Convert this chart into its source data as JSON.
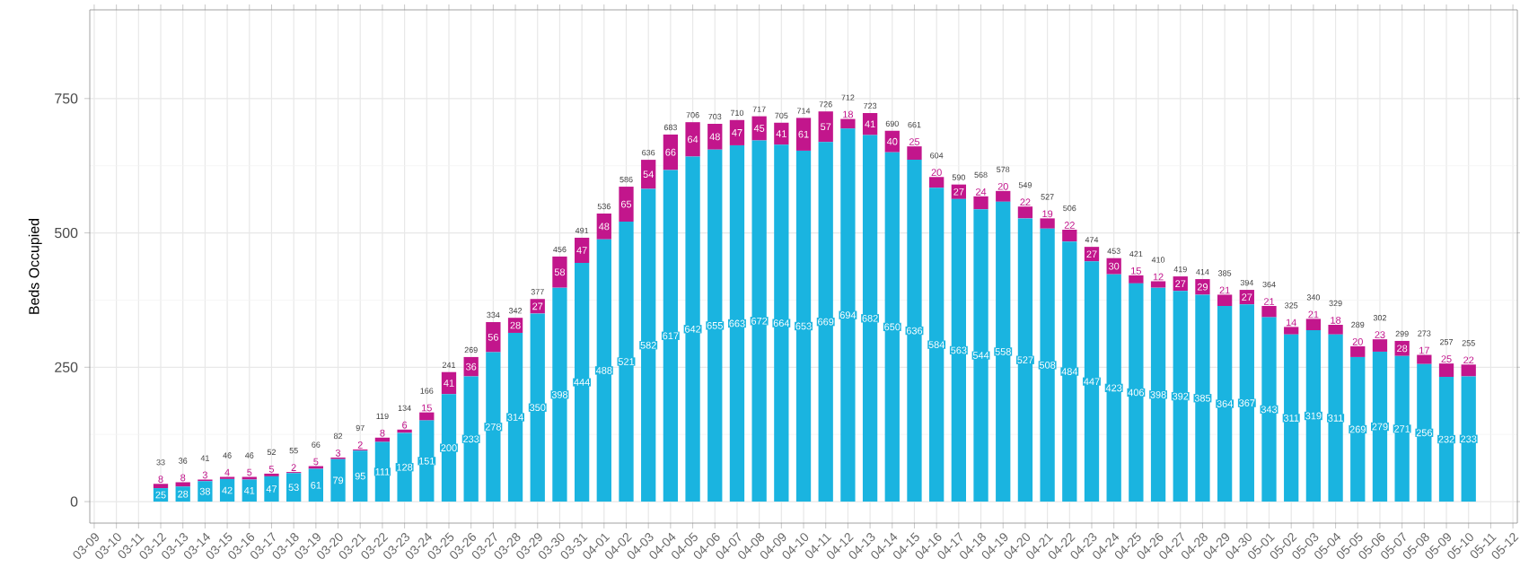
{
  "chart_data": {
    "type": "bar",
    "stacked": true,
    "ylabel": "Beds Occupied",
    "categories": [
      "03-09",
      "03-10",
      "03-11",
      "03-12",
      "03-13",
      "03-14",
      "03-15",
      "03-16",
      "03-17",
      "03-18",
      "03-19",
      "03-20",
      "03-21",
      "03-22",
      "03-23",
      "03-24",
      "03-25",
      "03-26",
      "03-27",
      "03-28",
      "03-29",
      "03-30",
      "03-31",
      "04-01",
      "04-02",
      "04-03",
      "04-04",
      "04-05",
      "04-06",
      "04-07",
      "04-08",
      "04-09",
      "04-10",
      "04-11",
      "04-12",
      "04-13",
      "04-14",
      "04-15",
      "04-16",
      "04-17",
      "04-18",
      "04-19",
      "04-20",
      "04-21",
      "04-22",
      "04-23",
      "04-24",
      "04-25",
      "04-26",
      "04-27",
      "04-28",
      "04-29",
      "04-30",
      "05-01",
      "05-02",
      "05-03",
      "05-04",
      "05-05",
      "05-06",
      "05-07",
      "05-08",
      "05-09",
      "05-10",
      "05-11",
      "05-12"
    ],
    "series": [
      {
        "color": "#1ab4e0",
        "values": [
          null,
          null,
          null,
          25,
          28,
          38,
          42,
          41,
          47,
          53,
          61,
          79,
          95,
          111,
          128,
          151,
          200,
          233,
          278,
          314,
          350,
          398,
          444,
          488,
          521,
          582,
          617,
          642,
          655,
          663,
          672,
          664,
          653,
          669,
          694,
          682,
          650,
          636,
          584,
          563,
          544,
          558,
          527,
          508,
          484,
          447,
          423,
          406,
          398,
          392,
          385,
          364,
          367,
          343,
          311,
          319,
          311,
          269,
          279,
          271,
          256,
          232,
          233,
          null,
          null
        ]
      },
      {
        "color": "#c2168c",
        "values": [
          null,
          null,
          null,
          8,
          8,
          3,
          4,
          5,
          5,
          2,
          5,
          3,
          2,
          8,
          6,
          15,
          41,
          36,
          56,
          28,
          27,
          58,
          47,
          48,
          65,
          54,
          66,
          64,
          48,
          47,
          45,
          41,
          61,
          57,
          18,
          41,
          40,
          25,
          20,
          27,
          24,
          20,
          22,
          19,
          22,
          27,
          30,
          15,
          12,
          27,
          29,
          21,
          27,
          21,
          14,
          21,
          18,
          20,
          23,
          28,
          17,
          25,
          22,
          null,
          null
        ]
      }
    ],
    "totals": [
      null,
      null,
      null,
      "33",
      "36",
      "41",
      "46",
      "46",
      "52",
      "55",
      "66",
      "82",
      "97",
      "119",
      "134",
      "166",
      "241",
      "269",
      "334",
      "342",
      "377",
      "456",
      "491",
      "536",
      "586",
      "636",
      "683",
      "706",
      "703",
      "710",
      "717",
      "705",
      "714",
      "726",
      "712",
      "723",
      "690",
      "661",
      "604",
      "590",
      "568",
      "578",
      "549",
      "527",
      "506",
      "474",
      "453",
      "421",
      "410",
      "419",
      "414",
      "385",
      "394",
      "364",
      "325",
      "340",
      "329",
      "289",
      "302",
      "299",
      "273",
      "257",
      "255",
      null,
      null
    ],
    "data_labels": true,
    "ylim": [
      -40,
      915
    ],
    "yticks": [
      0,
      250,
      500,
      750
    ],
    "grid": true
  }
}
